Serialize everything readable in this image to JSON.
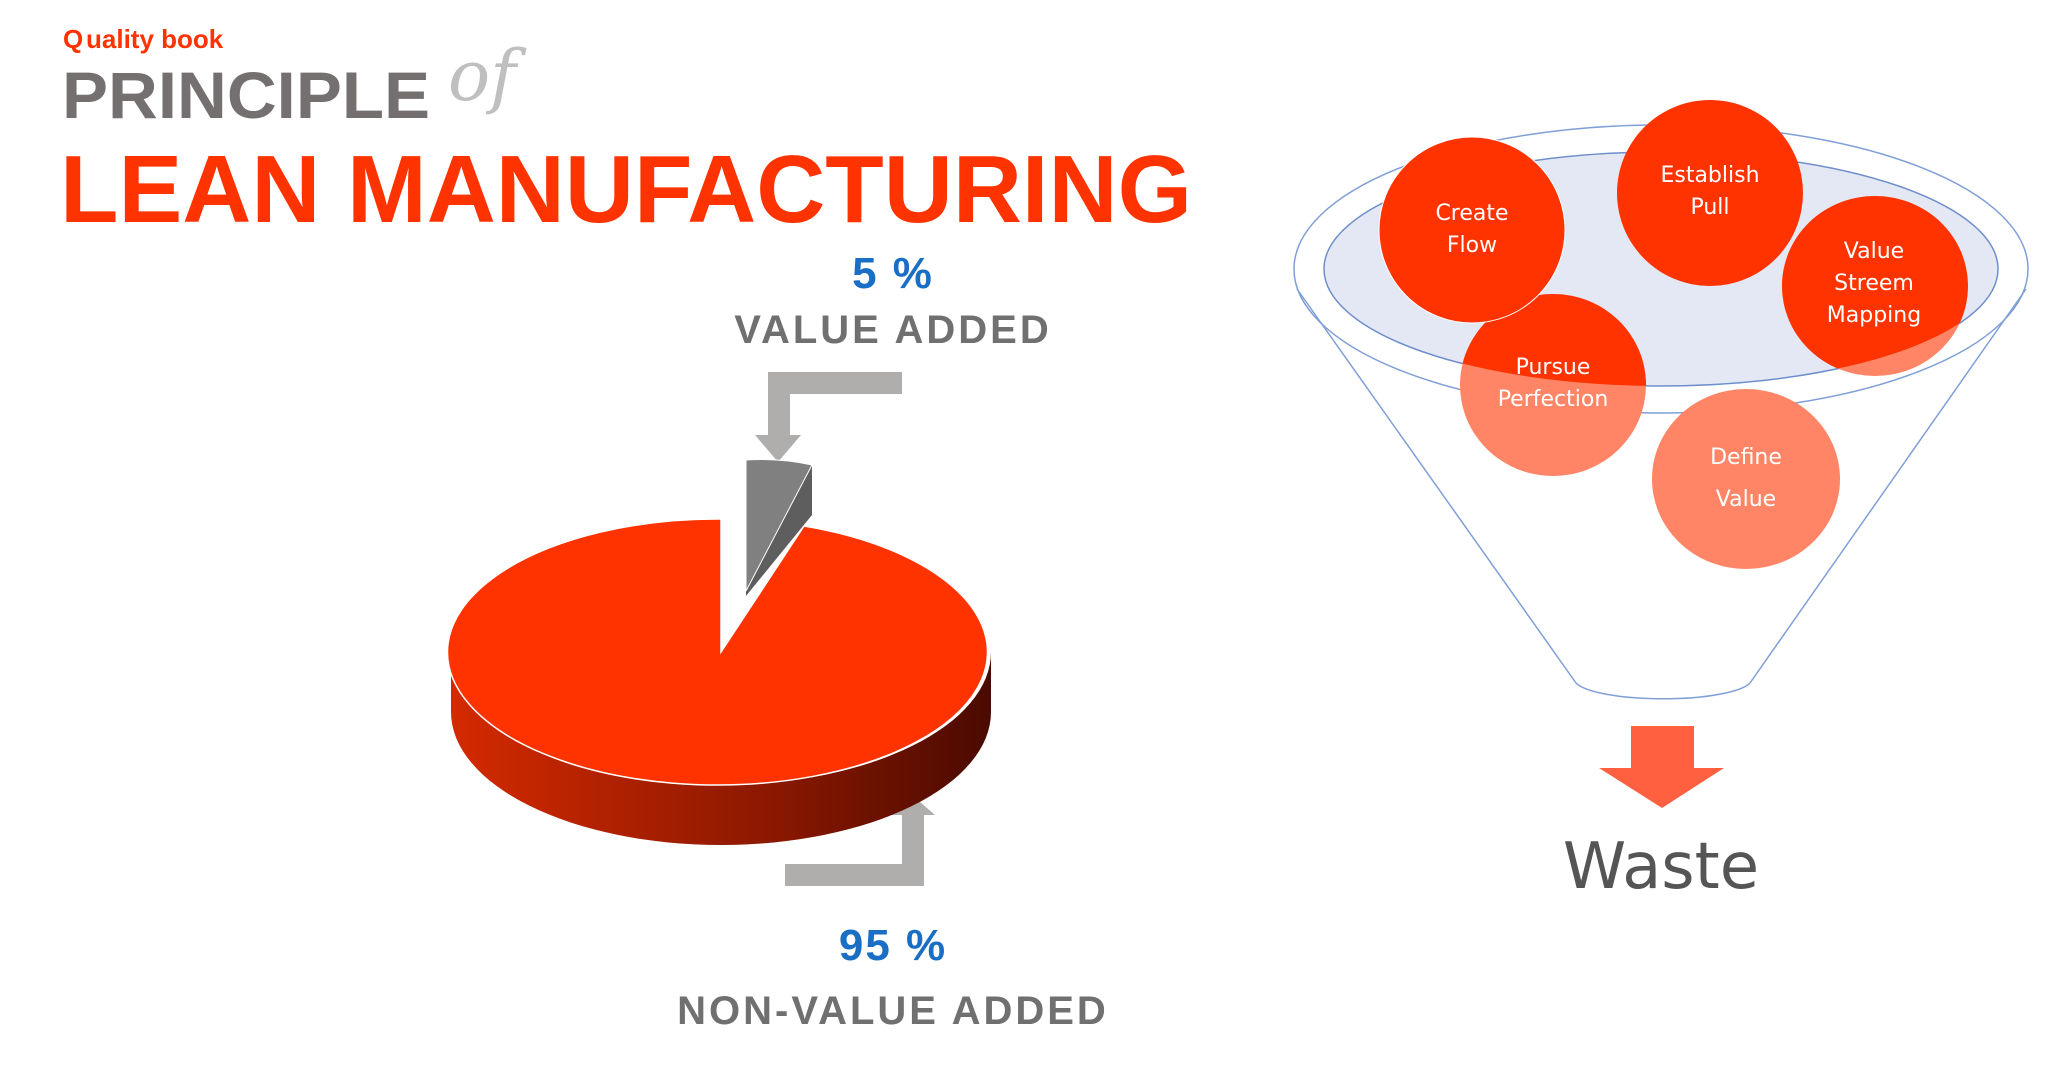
{
  "logo": {
    "text": "uality book",
    "letter": "Q"
  },
  "title": {
    "line1": "PRINCIPLE",
    "connector": "of",
    "line2": "LEAN MANUFACTURING"
  },
  "pie": {
    "value_added": {
      "percent_label": "5 %",
      "label": "VALUE ADDED",
      "value": 5,
      "color": "#7f7f7f"
    },
    "non_value_added": {
      "percent_label": "95 %",
      "label": "NON-VALUE ADDED",
      "value": 95,
      "color": "#ff3300"
    }
  },
  "funnel": {
    "principles": [
      {
        "line1": "Create",
        "line2": "Flow"
      },
      {
        "line1": "Establish",
        "line2": "Pull"
      },
      {
        "line1": "Value",
        "line2": "Streem",
        "line3": "Mapping"
      },
      {
        "line1": "Pursue",
        "line2": "Perfection"
      },
      {
        "line1": "Define",
        "line2": "Value"
      }
    ],
    "output_label": "Waste",
    "colors": {
      "primary": "#ff3300",
      "faded": "#ff8566",
      "disk": "#e4e8f4",
      "outline": "#7f9fd6",
      "arrow": "#ff6040"
    }
  }
}
